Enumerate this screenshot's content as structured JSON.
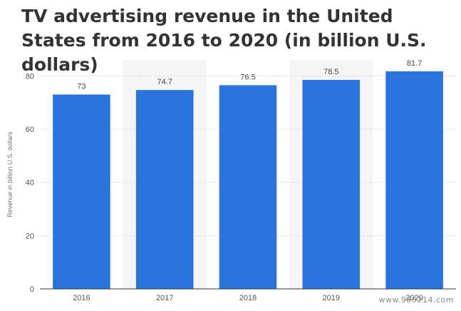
{
  "chart_data": {
    "type": "bar",
    "title": "TV advertising revenue in the United States from 2016 to 2020 (in billion U.S. dollars)",
    "xlabel": "",
    "ylabel": "Revenue in billion U.S. dollars",
    "categories": [
      "2016",
      "2017",
      "2018",
      "2019",
      "2020"
    ],
    "values": [
      73,
      74.7,
      76.5,
      78.5,
      81.7
    ],
    "data_labels": [
      "73",
      "74.7",
      "76.5",
      "78.5",
      "81.7"
    ],
    "y_ticks": [
      0,
      20,
      40,
      60,
      80
    ],
    "ylim": [
      0,
      86
    ],
    "grid": true,
    "bar_color": "#2a74dd",
    "band_color": "#f5f5f5"
  },
  "watermark": "www.989214.com"
}
